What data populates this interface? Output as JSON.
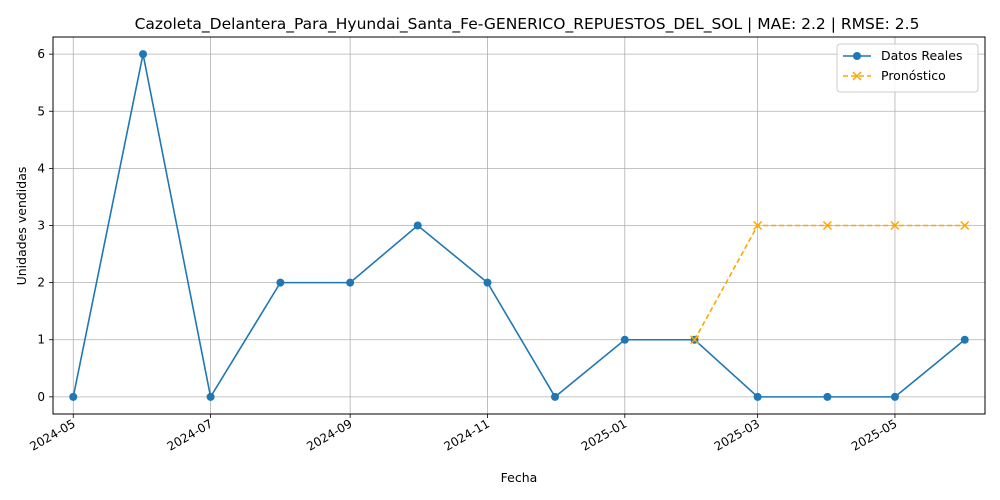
{
  "chart_data": {
    "type": "line",
    "title": "Cazoleta_Delantera_Para_Hyundai_Santa_Fe-GENERICO_REPUESTOS_DEL_SOL | MAE: 2.2 | RMSE: 2.5",
    "xlabel": "Fecha",
    "ylabel": "Unidades vendidas",
    "x_ticks": [
      "2024-05",
      "2024-07",
      "2024-09",
      "2024-11",
      "2025-01",
      "2025-03",
      "2025-05"
    ],
    "y_ticks": [
      0,
      1,
      2,
      3,
      4,
      5,
      6
    ],
    "xlim": [
      "2024-04-22",
      "2025-06-10"
    ],
    "ylim": [
      -0.3,
      6.3
    ],
    "grid": true,
    "legend_position": "top-right",
    "series": [
      {
        "name": "Datos Reales",
        "color": "#1f77b4",
        "style": "solid",
        "marker": "circle",
        "x": [
          "2024-05-01",
          "2024-06-01",
          "2024-07-01",
          "2024-08-01",
          "2024-09-01",
          "2024-10-01",
          "2024-11-01",
          "2024-12-01",
          "2025-01-01",
          "2025-02-01",
          "2025-03-01",
          "2025-04-01",
          "2025-05-01",
          "2025-06-01"
        ],
        "values": [
          0,
          6,
          0,
          2,
          2,
          3,
          2,
          0,
          1,
          1,
          0,
          0,
          0,
          1
        ]
      },
      {
        "name": "Pronóstico",
        "color": "#ffa500",
        "style": "dashed",
        "marker": "x",
        "x": [
          "2025-02-01",
          "2025-03-01",
          "2025-04-01",
          "2025-05-01",
          "2025-06-01"
        ],
        "values": [
          1,
          3,
          3,
          3,
          3
        ]
      }
    ]
  }
}
